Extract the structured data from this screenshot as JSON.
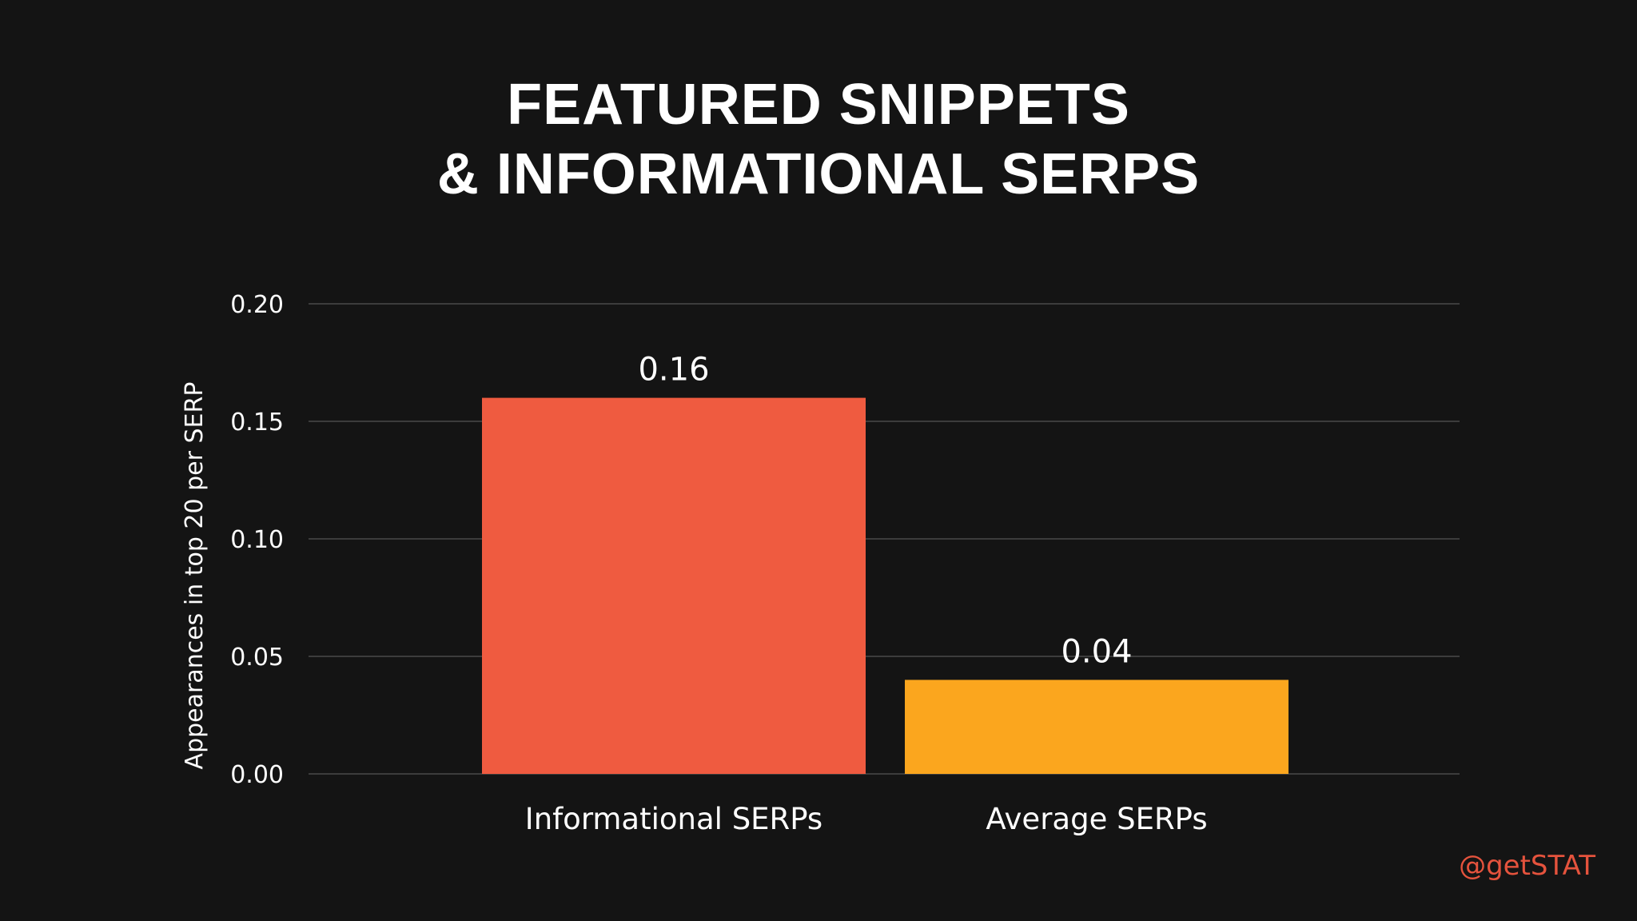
{
  "colors": {
    "background": "#141414",
    "gridline": "#4a4a4a",
    "text": "#ffffff",
    "brand": "#e5533d"
  },
  "watermark": "@getSTAT",
  "chart_data": {
    "type": "bar",
    "title_lines": [
      "FEATURED SNIPPETS",
      "& INFORMATIONAL SERPS"
    ],
    "xlabel": "",
    "ylabel": "Appearances in top 20 per SERP",
    "categories": [
      "Informational SERPs",
      "Average SERPs"
    ],
    "values": [
      0.16,
      0.04
    ],
    "data_labels": [
      "0.16",
      "0.04"
    ],
    "bar_colors": [
      "#ef5b40",
      "#fba61e"
    ],
    "ylim": [
      0,
      0.2
    ],
    "yticks": [
      0.0,
      0.05,
      0.1,
      0.15,
      0.2
    ],
    "ytick_labels": [
      "0.00",
      "0.05",
      "0.10",
      "0.15",
      "0.20"
    ],
    "grid": true,
    "legend": "none"
  }
}
